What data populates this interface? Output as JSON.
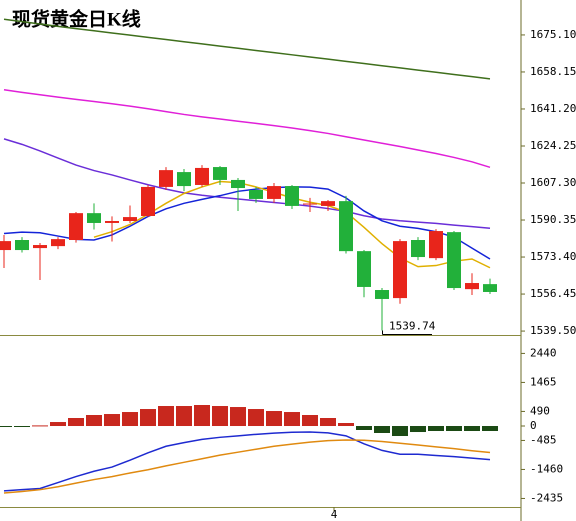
{
  "chart_data": [
    {
      "type": "candlestick",
      "title": "现货黄金日K线",
      "categories": [
        null,
        null,
        null,
        null,
        null,
        null,
        null,
        null,
        null,
        null,
        null,
        null,
        null,
        null,
        null,
        null,
        null,
        null,
        "4",
        null,
        null,
        null,
        null,
        null,
        null,
        null,
        null,
        null
      ],
      "open": [
        1576.6,
        1581.2,
        1577.5,
        1578.4,
        1581.2,
        1593.5,
        1589.0,
        1589.9,
        1592.2,
        1605.5,
        1612.3,
        1606.4,
        1614.6,
        1608.7,
        1604.1,
        1600.0,
        1605.9,
        1597.5,
        1596.8,
        1599.0,
        1576.1,
        1558.3,
        1554.6,
        1581.2,
        1572.9,
        1584.8,
        1558.7,
        1561.0
      ],
      "high": [
        1583.5,
        1582.5,
        1579.8,
        1582.5,
        1594.0,
        1598.0,
        1592.0,
        1597.0,
        1606.4,
        1614.6,
        1613.7,
        1615.5,
        1615.1,
        1609.6,
        1605.5,
        1607.3,
        1606.4,
        1600.5,
        1599.5,
        1601.4,
        1576.6,
        1559.2,
        1581.6,
        1582.5,
        1586.2,
        1585.3,
        1566.0,
        1563.5
      ],
      "low": [
        1568.4,
        1575.5,
        1562.9,
        1577.0,
        1580.0,
        1586.0,
        1580.5,
        1589.0,
        1591.7,
        1604.1,
        1603.6,
        1605.5,
        1606.4,
        1594.5,
        1598.2,
        1598.2,
        1595.4,
        1594.0,
        1594.5,
        1575.0,
        1555.0,
        1539.74,
        1552.0,
        1572.0,
        1572.0,
        1558.3,
        1556.0,
        1556.5
      ],
      "close": [
        1580.7,
        1576.6,
        1578.9,
        1581.6,
        1593.5,
        1589.0,
        1589.9,
        1591.7,
        1605.5,
        1613.2,
        1605.9,
        1614.2,
        1608.7,
        1605.0,
        1600.0,
        1605.9,
        1596.8,
        1597.9,
        1599.0,
        1576.1,
        1559.7,
        1554.2,
        1580.7,
        1573.4,
        1585.3,
        1559.2,
        1561.5,
        1557.4
      ],
      "up_color": "#e8251b",
      "down_color": "#22b03a",
      "series": [
        {
          "color": "#3f6f1c",
          "values": [
            1682.3,
            1681.2,
            1680.1,
            1679.0,
            1678.0,
            1677.0,
            1676.0,
            1675.0,
            1674.0,
            1673.0,
            1672.0,
            1671.0,
            1670.0,
            1669.0,
            1668.0,
            1667.0,
            1666.0,
            1665.0,
            1664.0,
            1663.0,
            1662.0,
            1661.0,
            1660.0,
            1659.0,
            1658.0,
            1657.0,
            1656.0,
            1655.0
          ]
        },
        {
          "color": "#e020d8",
          "values": [
            1650.0,
            1648.8,
            1647.7,
            1646.6,
            1645.6,
            1644.6,
            1643.6,
            1642.5,
            1641.3,
            1640.0,
            1638.7,
            1637.6,
            1636.6,
            1635.6,
            1634.6,
            1633.6,
            1632.5,
            1631.3,
            1630.0,
            1628.5,
            1627.0,
            1625.5,
            1624.0,
            1622.4,
            1620.8,
            1619.0,
            1617.0,
            1614.5
          ]
        },
        {
          "color": "#6a2ed8",
          "values": [
            1627.5,
            1625.0,
            1622.0,
            1618.7,
            1615.5,
            1613.0,
            1611.0,
            1608.7,
            1606.5,
            1604.5,
            1602.8,
            1601.7,
            1600.8,
            1600.0,
            1599.2,
            1598.4,
            1597.6,
            1596.7,
            1595.6,
            1594.3,
            1592.3,
            1590.8,
            1590.0,
            1589.4,
            1588.8,
            1588.0,
            1587.3,
            1586.6
          ]
        },
        {
          "color": "#1424d8",
          "values": [
            1584.2,
            1584.8,
            1584.5,
            1583.0,
            1581.5,
            1581.2,
            1583.5,
            1587.5,
            1592.0,
            1595.5,
            1598.0,
            1599.8,
            1601.5,
            1603.5,
            1604.5,
            1605.2,
            1605.5,
            1605.4,
            1604.5,
            1600.5,
            1594.5,
            1590.0,
            1587.5,
            1586.5,
            1585.0,
            1582.5,
            1577.5,
            1572.5
          ]
        },
        {
          "color": "#e0b000",
          "values": [
            null,
            null,
            null,
            null,
            null,
            1582.5,
            1585.0,
            1588.3,
            1593.0,
            1598.0,
            1602.5,
            1605.5,
            1608.0,
            1607.5,
            1605.5,
            1603.0,
            1600.5,
            1598.5,
            1597.0,
            1594.0,
            1587.0,
            1579.5,
            1573.0,
            1569.0,
            1569.5,
            1571.5,
            1572.5,
            1568.5
          ]
        }
      ],
      "ylim": [
        1537.7,
        1691.1
      ],
      "yticks": [
        {
          "value": 1675.1,
          "label": "1675.10"
        },
        {
          "value": 1658.15,
          "label": "1658.15"
        },
        {
          "value": 1641.2,
          "label": "1641.20"
        },
        {
          "value": 1624.25,
          "label": "1624.25"
        },
        {
          "value": 1607.3,
          "label": "1607.30"
        },
        {
          "value": 1590.35,
          "label": "1590.35"
        },
        {
          "value": 1573.4,
          "label": "1573.40"
        },
        {
          "value": 1556.45,
          "label": "1556.45"
        },
        {
          "value": 1539.5,
          "label": "1539.50"
        }
      ]
    },
    {
      "type": "macd",
      "values": [
        -30,
        -20,
        20,
        134,
        269,
        370,
        403,
        470,
        571,
        672,
        672,
        706,
        672,
        638,
        571,
        504,
        470,
        370,
        269,
        101,
        -134,
        -235,
        -336,
        -202,
        -168,
        -168,
        -168,
        -168
      ],
      "positive_color": "#c8281e",
      "negative_color": "#1b4a14",
      "series": [
        {
          "color": "#1e2ad0",
          "values": [
            -2180,
            -2140,
            -2100,
            -1900,
            -1700,
            -1520,
            -1380,
            -1150,
            -900,
            -680,
            -560,
            -450,
            -380,
            -330,
            -280,
            -240,
            -210,
            -200,
            -230,
            -330,
            -600,
            -820,
            -950,
            -950,
            -990,
            -1030,
            -1080,
            -1130
          ]
        },
        {
          "color": "#e08a10",
          "values": [
            -2250,
            -2200,
            -2140,
            -2040,
            -1920,
            -1800,
            -1700,
            -1580,
            -1470,
            -1340,
            -1220,
            -1100,
            -980,
            -880,
            -780,
            -680,
            -610,
            -540,
            -490,
            -470,
            -480,
            -520,
            -580,
            -640,
            -700,
            -760,
            -830,
            -890
          ]
        }
      ],
      "ylim": [
        -2655,
        2958
      ],
      "yticks": [
        2440,
        1465,
        490,
        0,
        -485,
        -1460,
        -2435
      ]
    }
  ]
}
